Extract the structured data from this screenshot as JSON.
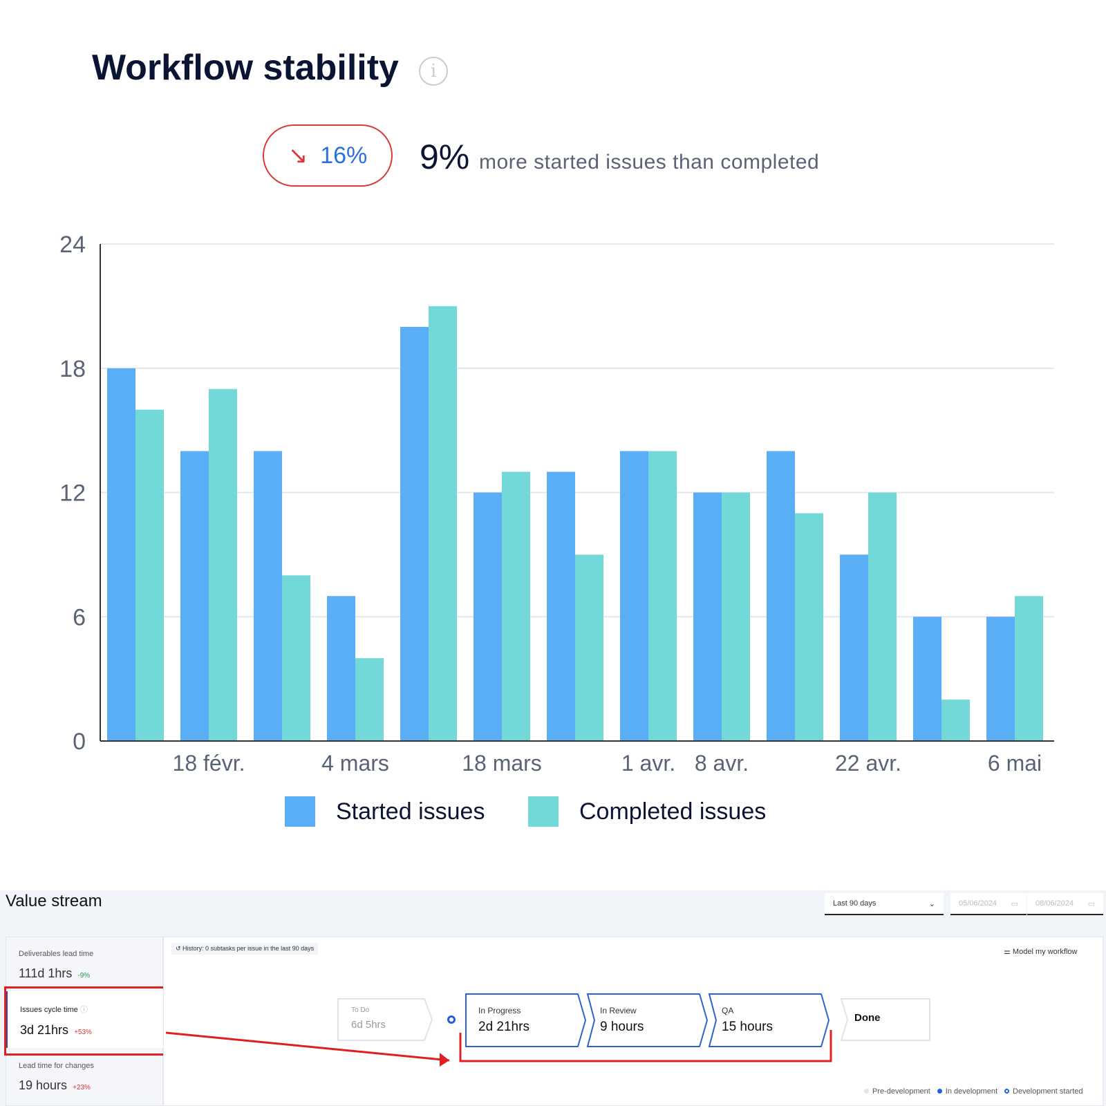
{
  "header": {
    "title": "Workflow stability",
    "change_pct": "16%",
    "change_direction": "down",
    "summary_value": "9%",
    "summary_text": "more started issues than completed"
  },
  "chart_data": {
    "type": "bar",
    "categories": [
      "",
      "18 févr.",
      "",
      "4 mars",
      "",
      "18 mars",
      "",
      "1 avr.",
      "8 avr.",
      "",
      "22 avr.",
      "",
      "6 mai"
    ],
    "series": [
      {
        "name": "Started issues",
        "color": "#5aaef5",
        "values": [
          18,
          14,
          14,
          7,
          20,
          12,
          13,
          14,
          12,
          14,
          9,
          6,
          6
        ]
      },
      {
        "name": "Completed issues",
        "color": "#72d9d8",
        "values": [
          16,
          17,
          8,
          4,
          21,
          13,
          9,
          14,
          12,
          11,
          12,
          2,
          7
        ]
      }
    ],
    "yticks": [
      0,
      6,
      12,
      18,
      24
    ],
    "ylim": [
      0,
      24
    ],
    "grid": true,
    "legend": "bottom"
  },
  "value_stream": {
    "title": "Value stream",
    "period": "Last 90 days",
    "start_date": "05/06/2024",
    "end_date": "08/06/2024",
    "metrics": [
      {
        "label": "Deliverables lead time",
        "value": "111d 1hrs",
        "change": "-9%"
      },
      {
        "label": "Issues cycle time",
        "value": "3d 21hrs",
        "change": "+53%"
      },
      {
        "label": "Lead time for changes",
        "value": "19 hours",
        "change": "+23%"
      }
    ],
    "history": "History: 0 subtasks per issue in the last 90 days",
    "model_button": "Model my workflow",
    "stages": [
      {
        "name": "To Do",
        "time": "6d 5hrs"
      },
      {
        "name": "In Progress",
        "time": "2d 21hrs"
      },
      {
        "name": "In Review",
        "time": "9 hours"
      },
      {
        "name": "QA",
        "time": "15 hours"
      },
      {
        "name": "Done",
        "time": ""
      }
    ],
    "legend": [
      "Pre-development",
      "In development",
      "Development started"
    ]
  }
}
